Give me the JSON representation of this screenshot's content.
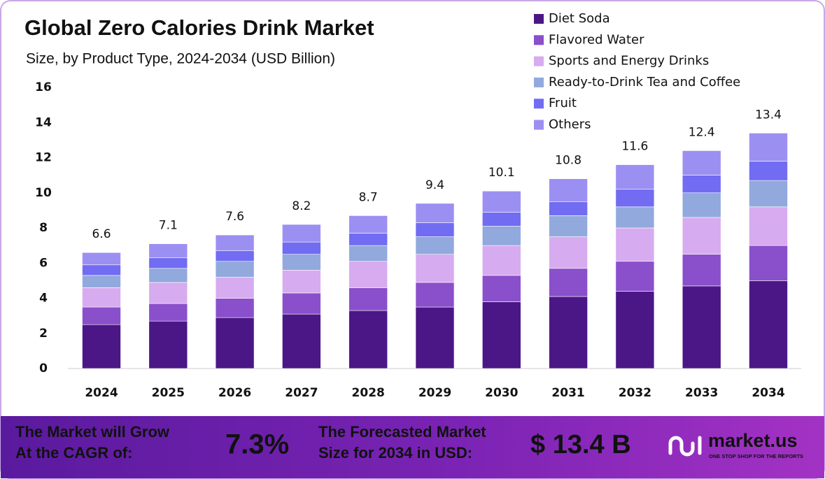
{
  "chart_data": {
    "type": "stacked_bar",
    "title": "Global Zero Calories Drink Market",
    "subtitle": "Size, by Product Type, 2024-2034 (USD Billion)",
    "categories": [
      "2024",
      "2025",
      "2026",
      "2027",
      "2028",
      "2029",
      "2030",
      "2031",
      "2032",
      "2033",
      "2034"
    ],
    "series": [
      {
        "name": "Diet Soda",
        "color": "#4b1786",
        "values": [
          2.5,
          2.7,
          2.9,
          3.1,
          3.3,
          3.5,
          3.8,
          4.1,
          4.4,
          4.7,
          5.0
        ]
      },
      {
        "name": "Flavored Water",
        "color": "#8a4fcb",
        "values": [
          1.0,
          1.0,
          1.1,
          1.2,
          1.3,
          1.4,
          1.5,
          1.6,
          1.7,
          1.8,
          2.0
        ]
      },
      {
        "name": "Sports and Energy Drinks",
        "color": "#d7abef",
        "values": [
          1.1,
          1.2,
          1.2,
          1.3,
          1.5,
          1.6,
          1.7,
          1.8,
          1.9,
          2.1,
          2.2
        ]
      },
      {
        "name": "Ready-to-Drink Tea and Coffee",
        "color": "#91a9dc",
        "values": [
          0.7,
          0.8,
          0.9,
          0.9,
          0.9,
          1.0,
          1.1,
          1.2,
          1.2,
          1.4,
          1.5
        ]
      },
      {
        "name": "Fruit",
        "color": "#716cf2",
        "values": [
          0.6,
          0.6,
          0.6,
          0.7,
          0.7,
          0.8,
          0.8,
          0.8,
          1.0,
          1.0,
          1.1
        ]
      },
      {
        "name": "Others",
        "color": "#9c8ff2",
        "values": [
          0.7,
          0.8,
          0.9,
          1.0,
          1.0,
          1.1,
          1.2,
          1.3,
          1.4,
          1.4,
          1.6
        ]
      }
    ],
    "totals": [
      6.6,
      7.1,
      7.6,
      8.2,
      8.7,
      9.4,
      10.1,
      10.8,
      11.6,
      12.4,
      13.4
    ],
    "ylim": [
      0,
      16
    ],
    "yticks": [
      0,
      2,
      4,
      6,
      8,
      10,
      12,
      14,
      16
    ],
    "grid": false
  },
  "banner": {
    "cagr_label": [
      "The Market will Grow",
      "At the CAGR of:"
    ],
    "cagr_value": "7.3%",
    "forecast_label": [
      "The Forecasted Market",
      "Size for 2034 in USD:"
    ],
    "forecast_value": "$ 13.4 B",
    "brand": "market.us",
    "tagline": "ONE STOP SHOP FOR THE REPORTS"
  }
}
